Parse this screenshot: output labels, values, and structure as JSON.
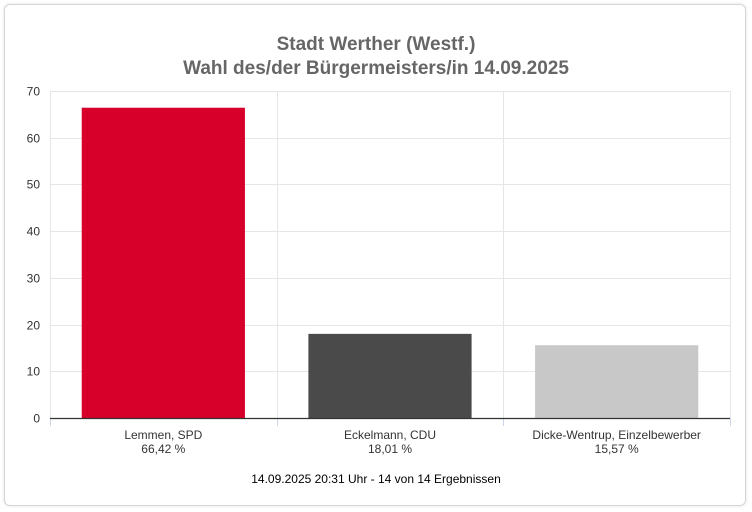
{
  "chart_data": {
    "type": "bar",
    "title": "Stadt Werther (Westf.)",
    "subtitle": "Wahl des/der Bürgermeisters/in 14.09.2025",
    "categories": [
      "Lemmen, SPD",
      "Eckelmann, CDU",
      "Dicke-Wentrup, Einzelbewerber"
    ],
    "data_labels": [
      "66,42 %",
      "18,01 %",
      "15,57 %"
    ],
    "values": [
      66.42,
      18.01,
      15.57
    ],
    "colors": [
      "#d7002a",
      "#4a4a4a",
      "#c8c8c8"
    ],
    "ylim": [
      0,
      70
    ],
    "yticks": [
      0,
      10,
      20,
      30,
      40,
      50,
      60,
      70
    ],
    "grid": true,
    "legend": "none",
    "xlabel": "",
    "ylabel": ""
  },
  "footer": "14.09.2025 20:31 Uhr - 14 von 14 Ergebnissen"
}
